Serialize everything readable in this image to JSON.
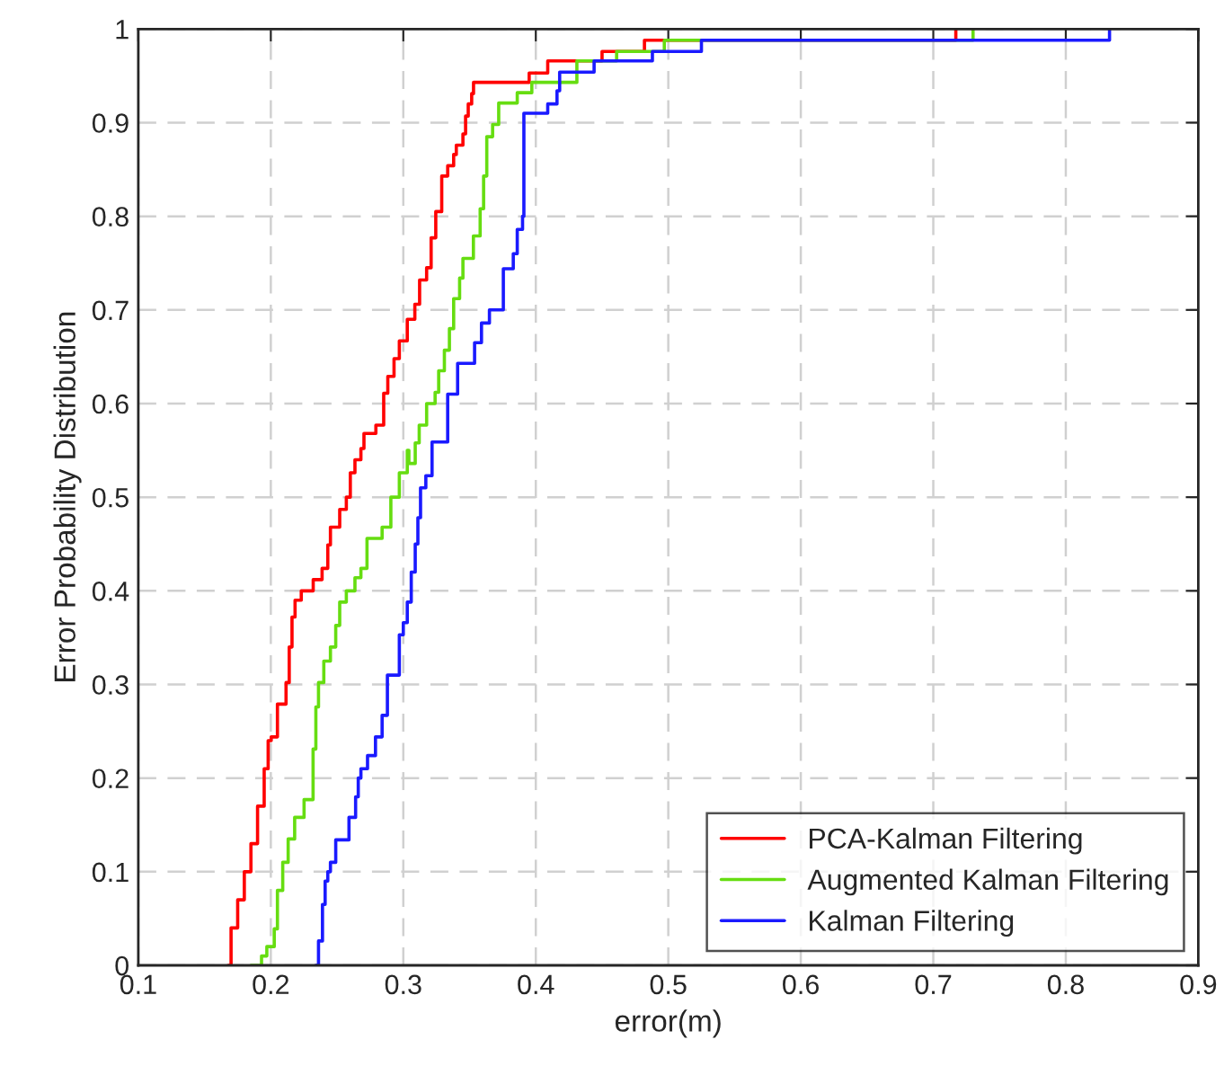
{
  "chart_data": {
    "type": "step",
    "xlabel": "error(m)",
    "ylabel": "Error Probability Distribution",
    "xlim": [
      0.1,
      0.9
    ],
    "ylim": [
      0,
      1
    ],
    "xticks": [
      0.1,
      0.2,
      0.3,
      0.4,
      0.5,
      0.6,
      0.7,
      0.8,
      0.9
    ],
    "yticks": [
      0,
      0.1,
      0.2,
      0.3,
      0.4,
      0.5,
      0.6,
      0.7,
      0.8,
      0.9,
      1
    ],
    "grid": true,
    "legend": "bottom right",
    "line_style": "solid",
    "series": [
      {
        "name": "PCA-Kalman Filtering",
        "color": "#ff0000",
        "x": [
          0.168,
          0.17,
          0.175,
          0.18,
          0.185,
          0.19,
          0.195,
          0.198,
          0.2003,
          0.205,
          0.2115,
          0.2139,
          0.216,
          0.2183,
          0.223,
          0.232,
          0.2387,
          0.243,
          0.245,
          0.252,
          0.257,
          0.26,
          0.2635,
          0.268,
          0.2703,
          0.2793,
          0.2852,
          0.2883,
          0.293,
          0.297,
          0.303,
          0.3087,
          0.3123,
          0.3176,
          0.321,
          0.3245,
          0.329,
          0.3335,
          0.338,
          0.34,
          0.345,
          0.347,
          0.349,
          0.3516,
          0.353,
          0.395,
          0.409,
          0.45,
          0.482,
          0.717
        ],
        "values": [
          0,
          0.04,
          0.07,
          0.1,
          0.13,
          0.17,
          0.21,
          0.24,
          0.244,
          0.279,
          0.302,
          0.34,
          0.372,
          0.39,
          0.4,
          0.412,
          0.424,
          0.449,
          0.468,
          0.487,
          0.5,
          0.526,
          0.54,
          0.552,
          0.568,
          0.577,
          0.611,
          0.629,
          0.648,
          0.667,
          0.69,
          0.706,
          0.732,
          0.745,
          0.777,
          0.805,
          0.843,
          0.854,
          0.866,
          0.876,
          0.888,
          0.907,
          0.92,
          0.931,
          0.943,
          0.953,
          0.966,
          0.976,
          0.988,
          1.0
        ]
      },
      {
        "name": "Augmented Kalman Filtering",
        "color": "#66dd11",
        "x": [
          0.185,
          0.193,
          0.197,
          0.2026,
          0.205,
          0.209,
          0.2131,
          0.218,
          0.2251,
          0.2319,
          0.234,
          0.236,
          0.24,
          0.245,
          0.249,
          0.252,
          0.257,
          0.2635,
          0.268,
          0.2726,
          0.284,
          0.2906,
          0.297,
          0.303,
          0.3042,
          0.309,
          0.312,
          0.3176,
          0.324,
          0.3267,
          0.331,
          0.3348,
          0.338,
          0.3425,
          0.345,
          0.3529,
          0.358,
          0.3606,
          0.363,
          0.3674,
          0.372,
          0.386,
          0.397,
          0.431,
          0.461,
          0.497,
          0.73
        ],
        "values": [
          0,
          0.01,
          0.02,
          0.039,
          0.08,
          0.11,
          0.135,
          0.158,
          0.177,
          0.231,
          0.276,
          0.302,
          0.325,
          0.34,
          0.363,
          0.388,
          0.4,
          0.414,
          0.424,
          0.456,
          0.468,
          0.5,
          0.526,
          0.55,
          0.536,
          0.558,
          0.577,
          0.6,
          0.612,
          0.635,
          0.657,
          0.68,
          0.712,
          0.734,
          0.755,
          0.779,
          0.808,
          0.843,
          0.885,
          0.898,
          0.921,
          0.932,
          0.943,
          0.966,
          0.976,
          0.988,
          1.0
        ]
      },
      {
        "name": "Kalman Filtering",
        "color": "#1a1aff",
        "x": [
          0.234,
          0.236,
          0.239,
          0.241,
          0.243,
          0.245,
          0.249,
          0.259,
          0.264,
          0.266,
          0.268,
          0.273,
          0.279,
          0.284,
          0.288,
          0.297,
          0.3,
          0.303,
          0.306,
          0.309,
          0.311,
          0.313,
          0.317,
          0.3217,
          0.3335,
          0.341,
          0.3538,
          0.359,
          0.365,
          0.3755,
          0.383,
          0.386,
          0.39,
          0.391,
          0.409,
          0.416,
          0.418,
          0.444,
          0.488,
          0.525,
          0.833
        ],
        "values": [
          0,
          0.026,
          0.065,
          0.09,
          0.1,
          0.11,
          0.134,
          0.158,
          0.18,
          0.2,
          0.21,
          0.224,
          0.244,
          0.267,
          0.31,
          0.353,
          0.366,
          0.388,
          0.42,
          0.45,
          0.478,
          0.51,
          0.523,
          0.559,
          0.61,
          0.643,
          0.665,
          0.686,
          0.7,
          0.744,
          0.76,
          0.786,
          0.8,
          0.91,
          0.92,
          0.934,
          0.954,
          0.966,
          0.976,
          0.988,
          1.0
        ]
      }
    ]
  }
}
